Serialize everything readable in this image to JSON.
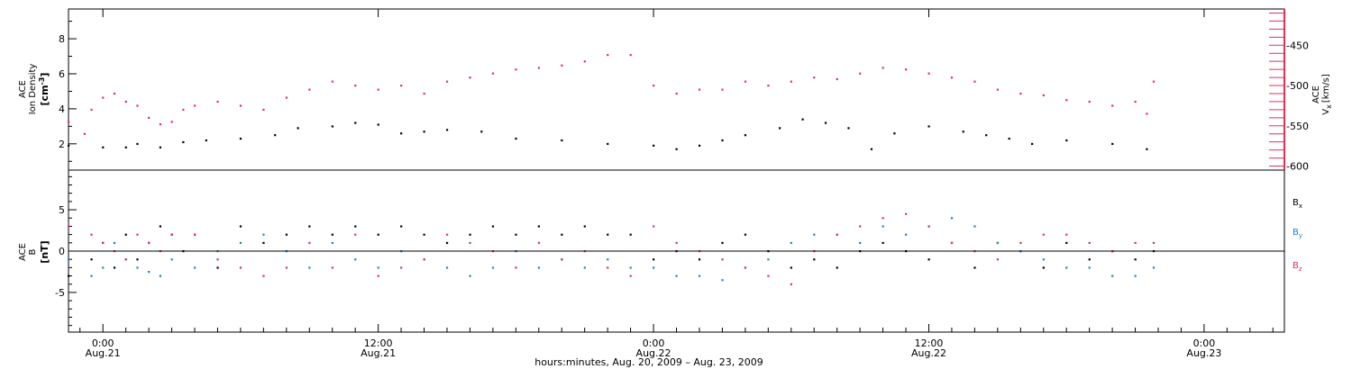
{
  "colors": {
    "density": "#000000",
    "velocity": "#e0305a",
    "bx": "#000000",
    "by": "#1a82d8",
    "bz": "#e0305a",
    "axis": "#000000"
  },
  "chart_data": [
    {
      "type": "scatter",
      "ylim_left": [
        0.5,
        9.7
      ],
      "ylim_right": [
        -605,
        -405
      ],
      "left_axis": {
        "label_lines": [
          "ACE",
          "Ion Density"
        ],
        "unit_base": "[cm",
        "unit_exp": "-3",
        "unit_close": "]",
        "ticks": [
          2,
          4,
          6,
          8
        ]
      },
      "right_axis": {
        "label": "ACE",
        "sym": "V",
        "sub": "x",
        "unit": "[km/s]",
        "ticks": [
          -450,
          -500,
          -550,
          -600
        ]
      },
      "series": [
        {
          "key": "density",
          "points": [
            [
              -1.5,
              1.9
            ],
            [
              0,
              1.8
            ],
            [
              1,
              1.8
            ],
            [
              1.5,
              2.0
            ],
            [
              2.5,
              1.8
            ],
            [
              3.5,
              2.1
            ],
            [
              4.5,
              2.2
            ],
            [
              6,
              2.3
            ],
            [
              7.5,
              2.5
            ],
            [
              8.5,
              2.9
            ],
            [
              10,
              3.0
            ],
            [
              11,
              3.2
            ],
            [
              12,
              3.1
            ],
            [
              13,
              2.6
            ],
            [
              14,
              2.7
            ],
            [
              15,
              2.8
            ],
            [
              16.5,
              2.7
            ],
            [
              18,
              2.3
            ],
            [
              20,
              2.2
            ],
            [
              22,
              2.0
            ],
            [
              24,
              1.9
            ],
            [
              25,
              1.7
            ],
            [
              26,
              1.9
            ],
            [
              27,
              2.2
            ],
            [
              28,
              2.5
            ],
            [
              29.5,
              2.9
            ],
            [
              30.5,
              3.4
            ],
            [
              31.5,
              3.2
            ],
            [
              32.5,
              2.9
            ],
            [
              33.5,
              1.7
            ],
            [
              34.5,
              2.6
            ],
            [
              36,
              3.0
            ],
            [
              37.5,
              2.7
            ],
            [
              38.5,
              2.5
            ],
            [
              39.5,
              2.3
            ],
            [
              40.5,
              2.0
            ],
            [
              42,
              2.2
            ],
            [
              44,
              2.0
            ],
            [
              45.5,
              1.7
            ]
          ]
        },
        {
          "key": "velocity",
          "points": [
            [
              -1.5,
              -545
            ],
            [
              -0.8,
              -560
            ],
            [
              -0.5,
              -530
            ],
            [
              0,
              -515
            ],
            [
              0.5,
              -510
            ],
            [
              1,
              -520
            ],
            [
              1.5,
              -525
            ],
            [
              2,
              -540
            ],
            [
              2.5,
              -548
            ],
            [
              3,
              -545
            ],
            [
              3.5,
              -530
            ],
            [
              4,
              -525
            ],
            [
              5,
              -520
            ],
            [
              6,
              -525
            ],
            [
              7,
              -530
            ],
            [
              8,
              -515
            ],
            [
              9,
              -505
            ],
            [
              10,
              -495
            ],
            [
              11,
              -500
            ],
            [
              12,
              -505
            ],
            [
              13,
              -500
            ],
            [
              14,
              -510
            ],
            [
              15,
              -495
            ],
            [
              16,
              -490
            ],
            [
              17,
              -485
            ],
            [
              18,
              -480
            ],
            [
              19,
              -478
            ],
            [
              20,
              -475
            ],
            [
              21,
              -470
            ],
            [
              22,
              -462
            ],
            [
              23,
              -462
            ],
            [
              24,
              -500
            ],
            [
              25,
              -510
            ],
            [
              26,
              -505
            ],
            [
              27,
              -505
            ],
            [
              28,
              -495
            ],
            [
              29,
              -500
            ],
            [
              30,
              -495
            ],
            [
              31,
              -490
            ],
            [
              32,
              -492
            ],
            [
              33,
              -485
            ],
            [
              34,
              -478
            ],
            [
              35,
              -480
            ],
            [
              36,
              -485
            ],
            [
              37,
              -490
            ],
            [
              38,
              -495
            ],
            [
              39,
              -505
            ],
            [
              40,
              -510
            ],
            [
              41,
              -512
            ],
            [
              42,
              -518
            ],
            [
              43,
              -520
            ],
            [
              44,
              -525
            ],
            [
              45,
              -520
            ],
            [
              45.5,
              -535
            ],
            [
              45.8,
              -495
            ]
          ]
        }
      ]
    },
    {
      "type": "scatter",
      "ylim": [
        -9.8,
        9.8
      ],
      "axis": {
        "label_lines": [
          "ACE",
          "B"
        ],
        "unit": "[nT]",
        "ticks": [
          5,
          0,
          -5
        ]
      },
      "series": [
        {
          "key": "bx",
          "name": "B",
          "sub": "x",
          "points": [
            [
              -1.5,
              -3
            ],
            [
              -0.5,
              -1
            ],
            [
              0,
              1
            ],
            [
              0.5,
              -2
            ],
            [
              1,
              2
            ],
            [
              1.5,
              -1
            ],
            [
              2,
              1
            ],
            [
              2.5,
              3
            ],
            [
              3,
              2
            ],
            [
              3.5,
              0
            ],
            [
              4,
              2
            ],
            [
              5,
              -2
            ],
            [
              6,
              3
            ],
            [
              7,
              1
            ],
            [
              8,
              2
            ],
            [
              9,
              3
            ],
            [
              10,
              2
            ],
            [
              11,
              3
            ],
            [
              12,
              2
            ],
            [
              13,
              3
            ],
            [
              14,
              2
            ],
            [
              15,
              1
            ],
            [
              16,
              2
            ],
            [
              17,
              3
            ],
            [
              18,
              2
            ],
            [
              19,
              3
            ],
            [
              20,
              2
            ],
            [
              21,
              3
            ],
            [
              22,
              2
            ],
            [
              23,
              2
            ],
            [
              24,
              -1
            ],
            [
              25,
              0
            ],
            [
              26,
              -1
            ],
            [
              27,
              1
            ],
            [
              28,
              2
            ],
            [
              29,
              0
            ],
            [
              30,
              -2
            ],
            [
              31,
              -1
            ],
            [
              32,
              -2
            ],
            [
              33,
              0
            ],
            [
              34,
              1
            ],
            [
              35,
              0
            ],
            [
              36,
              -1
            ],
            [
              37,
              1
            ],
            [
              38,
              -2
            ],
            [
              39,
              1
            ],
            [
              40,
              0
            ],
            [
              41,
              -2
            ],
            [
              42,
              1
            ],
            [
              43,
              -1
            ],
            [
              44,
              0
            ],
            [
              45,
              -1
            ],
            [
              45.8,
              0
            ]
          ]
        },
        {
          "key": "by",
          "name": "B",
          "sub": "y",
          "points": [
            [
              -1.5,
              -1
            ],
            [
              -0.5,
              -3
            ],
            [
              0,
              -2
            ],
            [
              0.5,
              1
            ],
            [
              1,
              -1
            ],
            [
              1.5,
              -2
            ],
            [
              2,
              -2.5
            ],
            [
              2.5,
              -3
            ],
            [
              3,
              -1
            ],
            [
              4,
              -2
            ],
            [
              5,
              0
            ],
            [
              6,
              1
            ],
            [
              7,
              2
            ],
            [
              8,
              0
            ],
            [
              9,
              -2
            ],
            [
              10,
              1
            ],
            [
              11,
              -1
            ],
            [
              12,
              -2
            ],
            [
              13,
              0
            ],
            [
              14,
              -1
            ],
            [
              15,
              -2
            ],
            [
              16,
              -3
            ],
            [
              17,
              -2
            ],
            [
              18,
              0
            ],
            [
              19,
              -2
            ],
            [
              20,
              -1
            ],
            [
              21,
              -2
            ],
            [
              22,
              -1
            ],
            [
              23,
              -2
            ],
            [
              24,
              -2
            ],
            [
              25,
              -3
            ],
            [
              26,
              -3
            ],
            [
              27,
              -3.5
            ],
            [
              28,
              -2
            ],
            [
              29,
              -1
            ],
            [
              30,
              1
            ],
            [
              31,
              2
            ],
            [
              32,
              2
            ],
            [
              33,
              1
            ],
            [
              34,
              3
            ],
            [
              35,
              2
            ],
            [
              36,
              3
            ],
            [
              37,
              4
            ],
            [
              38,
              3
            ],
            [
              39,
              1
            ],
            [
              40,
              0
            ],
            [
              41,
              -1
            ],
            [
              42,
              -2
            ],
            [
              43,
              -2
            ],
            [
              44,
              -3
            ],
            [
              45,
              -3
            ],
            [
              45.8,
              -2
            ]
          ]
        },
        {
          "key": "bz",
          "name": "B",
          "sub": "z",
          "points": [
            [
              -1.5,
              3
            ],
            [
              -0.5,
              2
            ],
            [
              0,
              1
            ],
            [
              0.5,
              0
            ],
            [
              1,
              -1
            ],
            [
              1.5,
              2
            ],
            [
              2,
              1
            ],
            [
              2.5,
              0
            ],
            [
              3,
              2
            ],
            [
              4,
              2
            ],
            [
              5,
              -1
            ],
            [
              6,
              -2
            ],
            [
              7,
              -3
            ],
            [
              8,
              -2
            ],
            [
              9,
              1
            ],
            [
              10,
              -2
            ],
            [
              11,
              2
            ],
            [
              12,
              -3
            ],
            [
              13,
              -2
            ],
            [
              14,
              -1
            ],
            [
              15,
              2
            ],
            [
              16,
              1
            ],
            [
              17,
              0
            ],
            [
              18,
              -2
            ],
            [
              19,
              1
            ],
            [
              20,
              -1
            ],
            [
              21,
              0
            ],
            [
              22,
              -2
            ],
            [
              23,
              -3
            ],
            [
              24,
              3
            ],
            [
              25,
              1
            ],
            [
              26,
              0
            ],
            [
              27,
              -1
            ],
            [
              28,
              -2
            ],
            [
              29,
              -3
            ],
            [
              30,
              -4
            ],
            [
              31,
              0
            ],
            [
              32,
              2
            ],
            [
              33,
              3
            ],
            [
              34,
              4
            ],
            [
              35,
              4.5
            ],
            [
              36,
              3
            ],
            [
              37,
              1
            ],
            [
              38,
              0
            ],
            [
              39,
              -1
            ],
            [
              40,
              1
            ],
            [
              41,
              2
            ],
            [
              42,
              2
            ],
            [
              43,
              1
            ],
            [
              44,
              0
            ],
            [
              45,
              1
            ],
            [
              45.8,
              1
            ]
          ]
        }
      ]
    }
  ],
  "x_axis": {
    "range_hours": [
      -1.5,
      51.5
    ],
    "ticks": [
      {
        "h": 0,
        "time": "0:00",
        "day": "Aug.21"
      },
      {
        "h": 12,
        "time": "12:00",
        "day": "Aug.21"
      },
      {
        "h": 24,
        "time": "0:00",
        "day": "Aug.22"
      },
      {
        "h": 36,
        "time": "12:00",
        "day": "Aug.22"
      },
      {
        "h": 48,
        "time": "0:00",
        "day": "Aug.23"
      }
    ],
    "caption": "hours:minutes, Aug. 20, 2009 – Aug. 23, 2009"
  }
}
